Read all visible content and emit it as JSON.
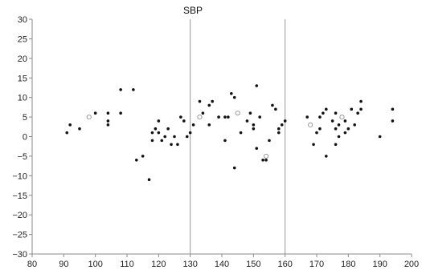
{
  "chart_data": {
    "type": "scatter",
    "title": "SBP",
    "xlabel": "",
    "ylabel": "",
    "xlim": [
      80,
      200
    ],
    "ylim": [
      -30,
      30
    ],
    "x_ticks": [
      80,
      90,
      100,
      110,
      120,
      130,
      140,
      150,
      160,
      170,
      180,
      190,
      200
    ],
    "y_ticks": [
      30,
      25,
      20,
      15,
      10,
      5,
      0,
      -5,
      -10,
      -15,
      -20,
      -25,
      -30
    ],
    "reference_lines_x": [
      130,
      160
    ],
    "grid": false,
    "colors": {
      "points": "#111111",
      "axis": "#888888",
      "open_points": "#999999"
    },
    "series": [
      {
        "marker": "filled",
        "points": [
          [
            91,
            1
          ],
          [
            92,
            3
          ],
          [
            95,
            2
          ],
          [
            100,
            6
          ],
          [
            104,
            3
          ],
          [
            104,
            4
          ],
          [
            104,
            6
          ],
          [
            108,
            12
          ],
          [
            108,
            6
          ],
          [
            112,
            12
          ],
          [
            113,
            -6
          ],
          [
            115,
            -5
          ],
          [
            117,
            -11
          ],
          [
            118,
            1
          ],
          [
            118,
            -1
          ],
          [
            119,
            2
          ],
          [
            120,
            4
          ],
          [
            120,
            1
          ],
          [
            121,
            -1
          ],
          [
            122,
            0
          ],
          [
            123,
            2
          ],
          [
            124,
            -2
          ],
          [
            125,
            0
          ],
          [
            126,
            -2
          ],
          [
            127,
            5
          ],
          [
            128,
            4
          ],
          [
            129,
            0
          ],
          [
            130,
            1
          ],
          [
            131,
            3
          ],
          [
            133,
            9
          ],
          [
            134,
            6
          ],
          [
            136,
            8
          ],
          [
            137,
            9
          ],
          [
            136,
            3
          ],
          [
            139,
            5
          ],
          [
            141,
            -1
          ],
          [
            141,
            5
          ],
          [
            142,
            5
          ],
          [
            143,
            11
          ],
          [
            144,
            10
          ],
          [
            144,
            -8
          ],
          [
            146,
            1
          ],
          [
            148,
            4
          ],
          [
            149,
            6
          ],
          [
            150,
            3
          ],
          [
            150,
            2
          ],
          [
            151,
            13
          ],
          [
            151,
            -3
          ],
          [
            152,
            5
          ],
          [
            153,
            -6
          ],
          [
            154,
            -6
          ],
          [
            155,
            -1
          ],
          [
            156,
            8
          ],
          [
            157,
            7
          ],
          [
            158,
            2
          ],
          [
            158,
            1
          ],
          [
            159,
            3
          ],
          [
            160,
            4
          ],
          [
            167,
            5
          ],
          [
            168,
            3
          ],
          [
            169,
            -2
          ],
          [
            170,
            1
          ],
          [
            171,
            2
          ],
          [
            171,
            5
          ],
          [
            172,
            6
          ],
          [
            173,
            -5
          ],
          [
            173,
            7
          ],
          [
            175,
            4
          ],
          [
            176,
            2
          ],
          [
            176,
            6
          ],
          [
            176,
            -2
          ],
          [
            177,
            0
          ],
          [
            177,
            3
          ],
          [
            178,
            5
          ],
          [
            179,
            1
          ],
          [
            179,
            4
          ],
          [
            180,
            2
          ],
          [
            181,
            7
          ],
          [
            182,
            3
          ],
          [
            183,
            6
          ],
          [
            184,
            9
          ],
          [
            184,
            7
          ],
          [
            190,
            0
          ],
          [
            194,
            4
          ],
          [
            194,
            7
          ]
        ]
      },
      {
        "marker": "open",
        "points": [
          [
            98,
            5
          ],
          [
            133,
            5
          ],
          [
            145,
            6
          ],
          [
            154,
            -5
          ],
          [
            168,
            3
          ],
          [
            178,
            5
          ]
        ]
      }
    ]
  }
}
